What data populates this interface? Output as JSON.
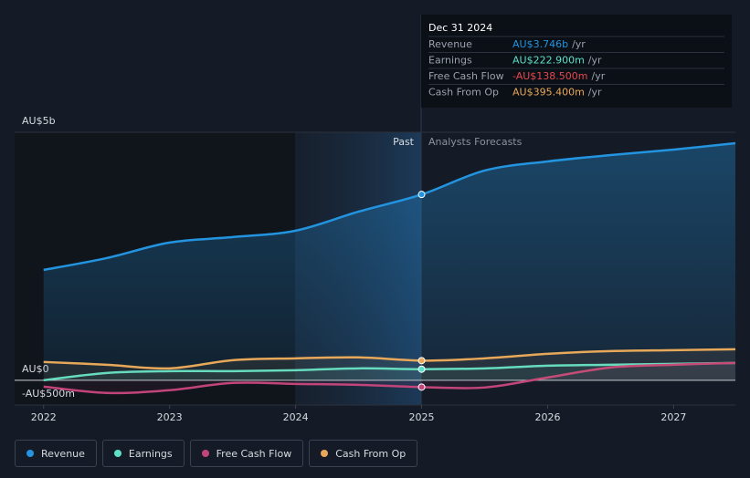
{
  "chart_data": {
    "type": "line",
    "x": [
      2022,
      2022.5,
      2023,
      2023.5,
      2024,
      2024.5,
      2025,
      2025.5,
      2026,
      2026.5,
      2027,
      2027.49
    ],
    "xlim": [
      2021.77,
      2027.49
    ],
    "xticks": [
      2022,
      2023,
      2024,
      2025,
      2026,
      2027
    ],
    "ylim": [
      -500,
      5000
    ],
    "yticks": [
      {
        "value": 5000,
        "label": "AU$5b"
      },
      {
        "value": 0,
        "label": "AU$0"
      },
      {
        "value": -500,
        "label": "-AU$500m"
      }
    ],
    "series": [
      {
        "name": "Revenue",
        "color": "#2394df",
        "values": [
          2224,
          2463,
          2776,
          2886,
          3015,
          3400,
          3746,
          4228,
          4412,
          4540,
          4651,
          4779
        ]
      },
      {
        "name": "Earnings",
        "color": "#5ce0c6",
        "values": [
          0,
          147,
          184,
          184,
          202,
          239,
          222.9,
          239,
          294,
          312,
          331,
          349
        ]
      },
      {
        "name": "Free Cash Flow",
        "color": "#c2457a",
        "values": [
          -129,
          -257,
          -202,
          -55,
          -74,
          -92,
          -138.5,
          -147,
          55,
          257,
          312,
          349
        ]
      },
      {
        "name": "Cash From Op",
        "color": "#e8a85a",
        "values": [
          368,
          312,
          239,
          404,
          441,
          460,
          395.4,
          441,
          533,
          588,
          607,
          625
        ]
      }
    ],
    "annotations": {
      "past": "Past",
      "forecast": "Analysts Forecasts"
    }
  },
  "tooltip": {
    "title": "Dec 31 2024",
    "rows": [
      {
        "label": "Revenue",
        "value": "AU$3.746b",
        "unit": "/yr",
        "color": "#2394df"
      },
      {
        "label": "Earnings",
        "value": "AU$222.900m",
        "unit": "/yr",
        "color": "#5ce0c6"
      },
      {
        "label": "Free Cash Flow",
        "value": "-AU$138.500m",
        "unit": "/yr",
        "color": "#e5484d"
      },
      {
        "label": "Cash From Op",
        "value": "AU$395.400m",
        "unit": "/yr",
        "color": "#e8a85a"
      }
    ]
  }
}
